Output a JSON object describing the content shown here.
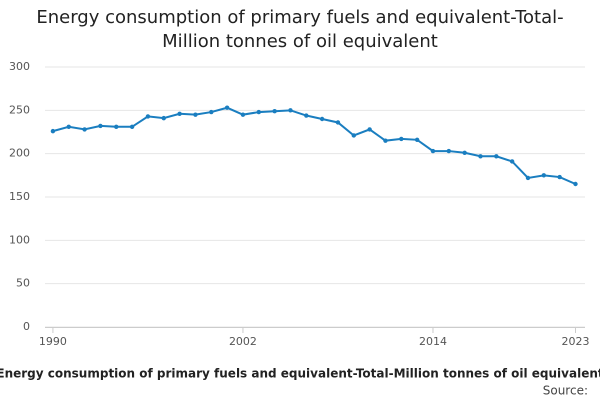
{
  "chart_data": {
    "type": "line",
    "title": "Energy consumption of primary fuels and equivalent-Total-Million tonnes of oil equivalent",
    "x_label": "Energy consumption of primary fuels and equivalent-Total-Million tonnes of oil equivalent",
    "source": "Source:",
    "x": [
      1990,
      1991,
      1992,
      1993,
      1994,
      1995,
      1996,
      1997,
      1998,
      1999,
      2000,
      2001,
      2002,
      2003,
      2004,
      2005,
      2006,
      2007,
      2008,
      2009,
      2010,
      2011,
      2012,
      2013,
      2014,
      2015,
      2016,
      2017,
      2018,
      2019,
      2020,
      2021,
      2022,
      2023
    ],
    "series": [
      {
        "name": "Total",
        "color": "#1a7ec0",
        "values": [
          226,
          231,
          228,
          232,
          231,
          231,
          243,
          241,
          246,
          245,
          248,
          253,
          245,
          248,
          249,
          250,
          244,
          240,
          236,
          221,
          228,
          215,
          217,
          216,
          203,
          203,
          201,
          197,
          197,
          191,
          172,
          175,
          173,
          165
        ]
      }
    ],
    "xlim": [
      1989.5,
      2023.6
    ],
    "xticks": [
      1990,
      2002,
      2014,
      2023
    ],
    "ylim": [
      0,
      300
    ],
    "yticks": [
      0,
      50,
      100,
      150,
      200,
      250,
      300
    ],
    "grid": true
  }
}
